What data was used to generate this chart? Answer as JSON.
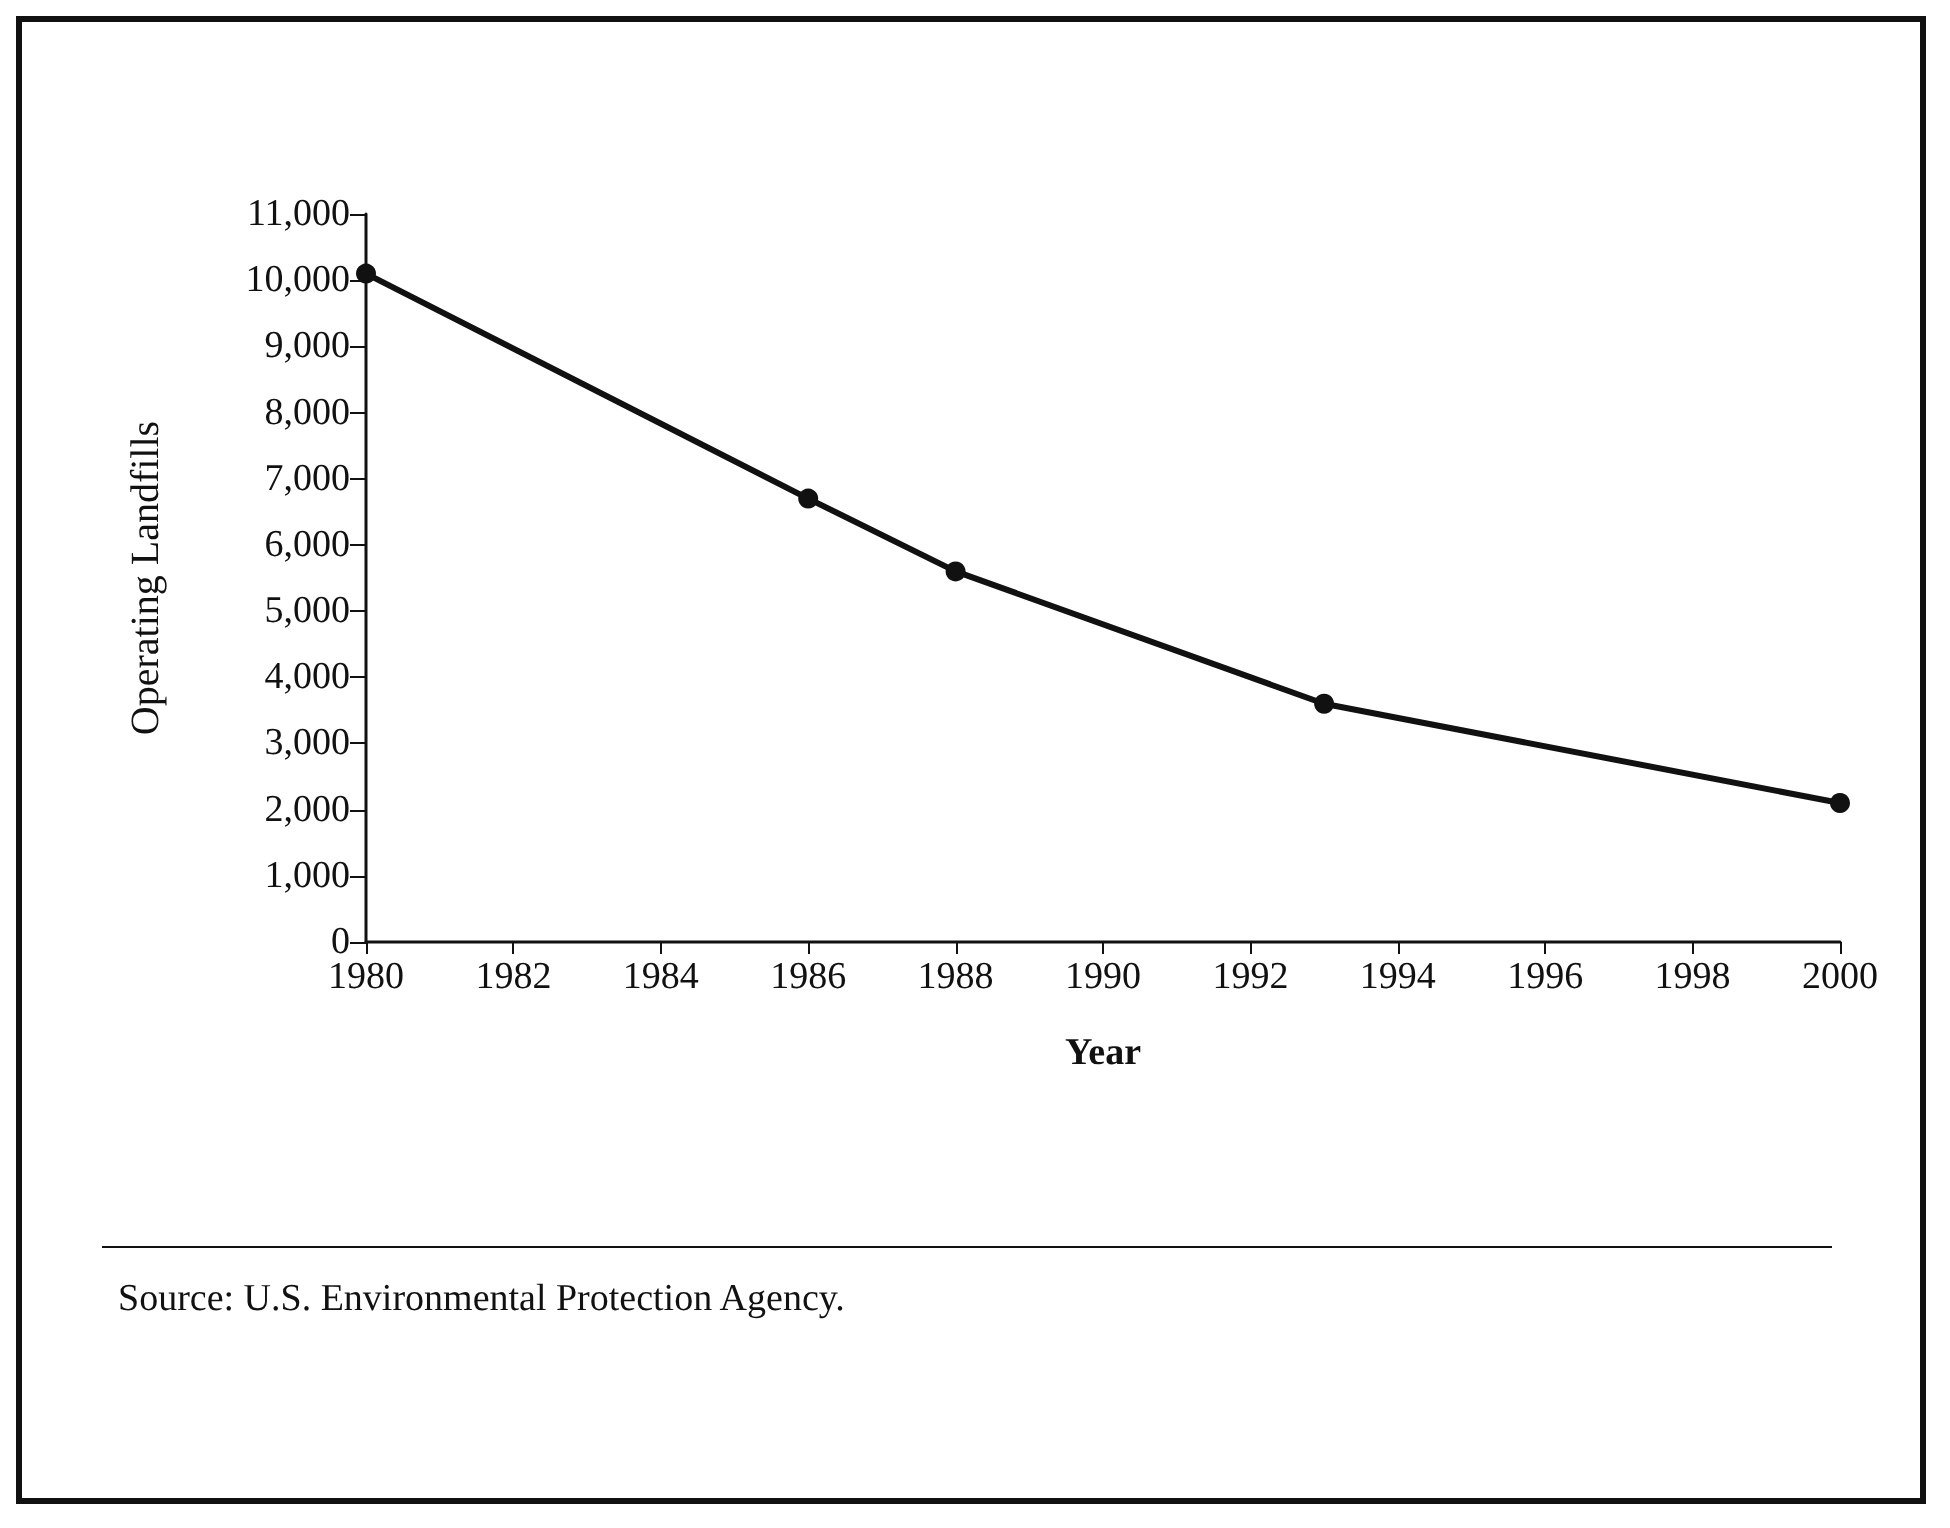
{
  "chart_data": {
    "type": "line",
    "xlabel": "Year",
    "ylabel": "Operating Landfills",
    "x": [
      1980,
      1986,
      1988,
      1993,
      2000
    ],
    "series": [
      {
        "color": "#111111",
        "values": [
          10100,
          6700,
          5600,
          3600,
          2100
        ]
      }
    ],
    "xlim": [
      1980,
      2000
    ],
    "xticks": [
      1980,
      1982,
      1984,
      1986,
      1988,
      1990,
      1992,
      1994,
      1996,
      1998,
      2000
    ],
    "ylim": [
      0,
      11000
    ],
    "yticks": [
      0,
      {
        "value": 1000,
        "label": "1,000"
      },
      {
        "value": 2000,
        "label": "2,000"
      },
      {
        "value": 3000,
        "label": "3,000"
      },
      {
        "value": 4000,
        "label": "4,000"
      },
      {
        "value": 5000,
        "label": "5,000"
      },
      {
        "value": 6000,
        "label": "6,000"
      },
      {
        "value": 7000,
        "label": "7,000"
      },
      {
        "value": 8000,
        "label": "8,000"
      },
      {
        "value": 9000,
        "label": "9,000"
      },
      {
        "value": 10000,
        "label": "10,000"
      },
      {
        "value": 11000,
        "label": "11,000"
      }
    ],
    "grid": false,
    "marker": "circle",
    "line_style": "solid",
    "annotations": [
      "Source: U.S. Environmental Protection Agency."
    ]
  }
}
